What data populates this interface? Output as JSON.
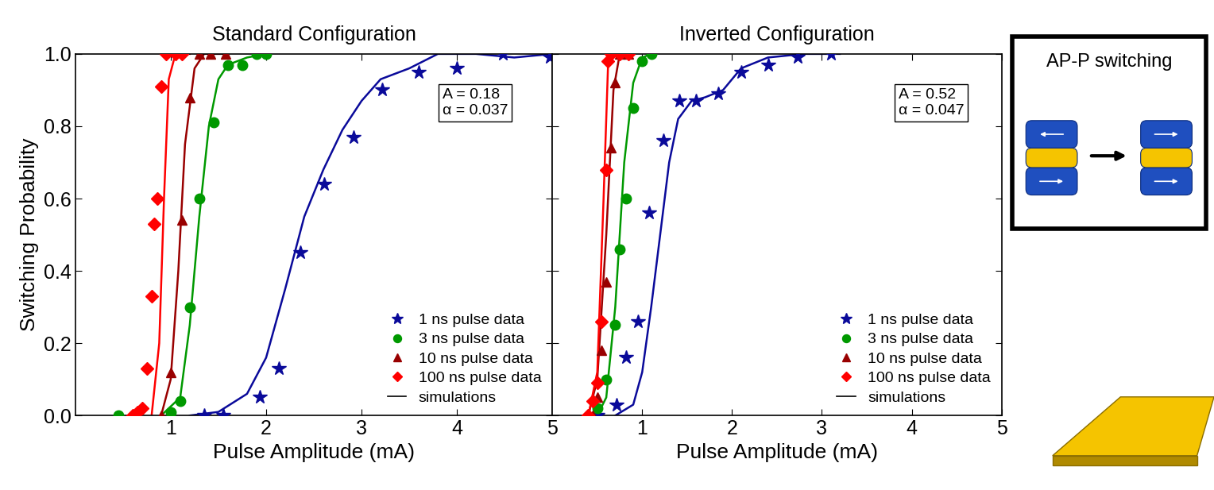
{
  "chart_data": [
    {
      "type": "scatter",
      "title": "Standard Configuration",
      "x_label": "Pulse Amplitude (mA)",
      "y_label": "Switching Probability",
      "annotation": [
        "A = 0.18",
        "α = 0.037"
      ],
      "xlim": [
        0,
        5
      ],
      "xticks": [
        1,
        2,
        3,
        4,
        5
      ],
      "ylim": [
        0,
        1
      ],
      "yticks": [
        0.0,
        0.2,
        0.4,
        0.6,
        0.8,
        1.0
      ],
      "legend": "lower right",
      "series": [
        {
          "name": "1 ns pulse data",
          "color": "#0a0a9a",
          "marker": "star",
          "x": [
            1.35,
            1.55,
            1.93,
            2.13,
            2.36,
            2.61,
            2.92,
            3.22,
            3.6,
            4.0,
            4.48,
            4.97
          ],
          "values": [
            0.0,
            0.0,
            0.05,
            0.13,
            0.45,
            0.64,
            0.77,
            0.9,
            0.95,
            0.96,
            1.0,
            0.99
          ]
        },
        {
          "name": "3 ns pulse data",
          "color": "#009900",
          "marker": "circle",
          "x": [
            0.45,
            1.0,
            1.1,
            1.2,
            1.3,
            1.45,
            1.6,
            1.75,
            1.9,
            2.0
          ],
          "values": [
            0.0,
            0.01,
            0.04,
            0.3,
            0.6,
            0.81,
            0.97,
            0.97,
            1.0,
            1.0
          ]
        },
        {
          "name": "10 ns pulse data",
          "color": "#990000",
          "marker": "triangle",
          "x": [
            0.9,
            1.0,
            1.12,
            1.2,
            1.3,
            1.42,
            1.58
          ],
          "values": [
            0.0,
            0.12,
            0.54,
            0.88,
            1.0,
            1.0,
            1.0
          ]
        },
        {
          "name": "100 ns pulse data",
          "color": "#ff0000",
          "marker": "diamond",
          "x": [
            0.6,
            0.65,
            0.7,
            0.75,
            0.8,
            0.83,
            0.86,
            0.9,
            0.95,
            1.05,
            1.12
          ],
          "values": [
            0.0,
            0.01,
            0.02,
            0.13,
            0.33,
            0.53,
            0.6,
            0.91,
            1.0,
            1.0,
            1.0
          ]
        }
      ],
      "simulations": {
        "name": "simulations",
        "color": "#000000",
        "curves": [
          {
            "color": "#0a0a9a",
            "x": [
              1.2,
              1.5,
              1.8,
              2.0,
              2.2,
              2.4,
              2.6,
              2.8,
              3.0,
              3.2,
              3.5,
              3.8,
              4.2,
              4.6,
              5.0
            ],
            "values": [
              0.0,
              0.01,
              0.06,
              0.16,
              0.35,
              0.55,
              0.68,
              0.79,
              0.87,
              0.93,
              0.96,
              1.0,
              1.0,
              0.99,
              1.0
            ]
          },
          {
            "color": "#009900",
            "x": [
              0.9,
              1.1,
              1.2,
              1.3,
              1.4,
              1.5,
              1.6,
              1.8,
              2.0
            ],
            "values": [
              0.0,
              0.05,
              0.25,
              0.55,
              0.8,
              0.93,
              0.97,
              0.99,
              1.0
            ]
          },
          {
            "color": "#990000",
            "x": [
              0.9,
              1.0,
              1.08,
              1.15,
              1.25,
              1.35,
              1.6
            ],
            "values": [
              0.0,
              0.1,
              0.4,
              0.75,
              0.96,
              1.0,
              1.0
            ]
          },
          {
            "color": "#ff0000",
            "x": [
              0.8,
              0.88,
              0.93,
              0.98,
              1.05,
              1.2
            ],
            "values": [
              0.0,
              0.2,
              0.6,
              0.93,
              1.0,
              1.0
            ]
          }
        ]
      }
    },
    {
      "type": "scatter",
      "title": "Inverted Configuration",
      "x_label": "Pulse Amplitude (mA)",
      "annotation": [
        "A = 0.52",
        "α = 0.047"
      ],
      "xlim": [
        0,
        5
      ],
      "xticks": [
        1,
        2,
        3,
        4,
        5
      ],
      "ylim": [
        0,
        1
      ],
      "yticks": [
        0.0,
        0.2,
        0.4,
        0.6,
        0.8,
        1.0
      ],
      "tick_labels": "x",
      "legend": "lower right",
      "series": [
        {
          "name": "1 ns pulse data",
          "color": "#0a0a9a",
          "marker": "star",
          "x": [
            0.5,
            0.71,
            0.82,
            0.95,
            1.08,
            1.24,
            1.41,
            1.6,
            1.85,
            2.1,
            2.4,
            2.73,
            3.1
          ],
          "values": [
            0.0,
            0.03,
            0.16,
            0.26,
            0.56,
            0.76,
            0.87,
            0.87,
            0.89,
            0.95,
            0.97,
            0.99,
            1.0
          ]
        },
        {
          "name": "3 ns pulse data",
          "color": "#009900",
          "marker": "circle",
          "x": [
            0.5,
            0.6,
            0.7,
            0.75,
            0.82,
            0.9,
            1.0,
            1.1
          ],
          "values": [
            0.02,
            0.1,
            0.25,
            0.46,
            0.6,
            0.85,
            0.98,
            1.0
          ]
        },
        {
          "name": "10 ns pulse data",
          "color": "#990000",
          "marker": "triangle",
          "x": [
            0.45,
            0.5,
            0.55,
            0.6,
            0.65,
            0.7,
            0.75,
            0.85
          ],
          "values": [
            0.0,
            0.05,
            0.18,
            0.37,
            0.74,
            0.92,
            1.0,
            1.0
          ]
        },
        {
          "name": "100 ns pulse data",
          "color": "#ff0000",
          "marker": "diamond",
          "x": [
            0.4,
            0.45,
            0.5,
            0.55,
            0.6,
            0.62,
            0.65,
            0.75,
            0.85
          ],
          "values": [
            0.0,
            0.04,
            0.09,
            0.26,
            0.68,
            0.98,
            1.0,
            1.0,
            1.0
          ]
        }
      ],
      "simulations": {
        "name": "simulations",
        "color": "#000000",
        "curves": [
          {
            "color": "#0a0a9a",
            "x": [
              0.7,
              0.9,
              1.0,
              1.1,
              1.2,
              1.3,
              1.4,
              1.55,
              1.7,
              1.9,
              2.1,
              2.4,
              2.8,
              3.2
            ],
            "values": [
              0.0,
              0.03,
              0.12,
              0.3,
              0.5,
              0.7,
              0.82,
              0.87,
              0.88,
              0.9,
              0.96,
              0.99,
              1.0,
              1.0
            ]
          },
          {
            "color": "#009900",
            "x": [
              0.5,
              0.6,
              0.7,
              0.8,
              0.9,
              1.0,
              1.1
            ],
            "values": [
              0.0,
              0.05,
              0.3,
              0.7,
              0.92,
              0.99,
              1.0
            ]
          },
          {
            "color": "#990000",
            "x": [
              0.4,
              0.5,
              0.6,
              0.68,
              0.75,
              0.85
            ],
            "values": [
              0.0,
              0.1,
              0.5,
              0.9,
              1.0,
              1.0
            ]
          },
          {
            "color": "#ff0000",
            "x": [
              0.4,
              0.5,
              0.57,
              0.62,
              0.7,
              0.85
            ],
            "values": [
              0.0,
              0.12,
              0.6,
              0.97,
              1.0,
              1.0
            ]
          }
        ]
      }
    }
  ],
  "inset": {
    "label": "AP-P switching"
  }
}
